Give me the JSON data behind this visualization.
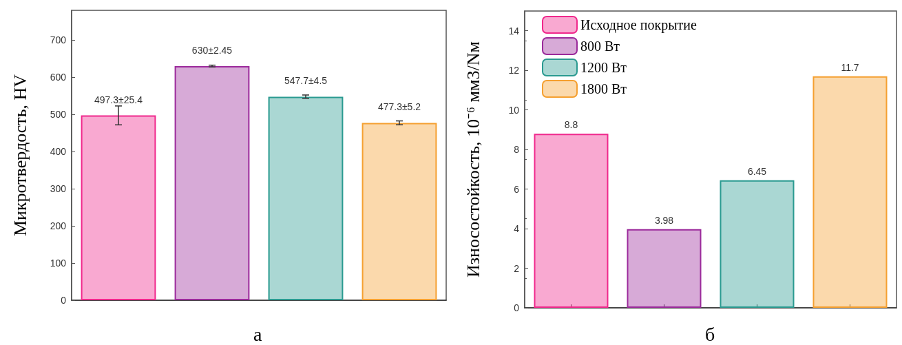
{
  "chart_data": [
    {
      "type": "bar",
      "categories": [
        null,
        null,
        null,
        null
      ],
      "values": [
        497.3,
        630,
        547.7,
        477.3
      ],
      "colors": [
        "#f0288c",
        "#9b2a9b",
        "#2a9a90",
        "#f5a030"
      ],
      "errors": [
        25.4,
        2.45,
        4.5,
        5.2
      ],
      "value_labels": [
        "497.3±25.4",
        "630±2.45",
        "547.7±4.5",
        "477.3±5.2"
      ],
      "ylabel": "Микротвердость, HV",
      "ylim": [
        0,
        780
      ],
      "yticks": [
        0,
        100,
        200,
        300,
        400,
        500,
        600,
        700
      ],
      "grid": false,
      "annotations": [
        "а"
      ]
    },
    {
      "type": "bar",
      "categories": [
        null,
        null,
        null,
        null
      ],
      "series": [
        {
          "name": "Исходное покрытие",
          "color": "#f0288c",
          "values": [
            8.8,
            null,
            null,
            null
          ]
        },
        {
          "name": "800 Вт",
          "color": "#9b2a9b",
          "values": [
            null,
            3.98,
            null,
            null
          ]
        },
        {
          "name": "1200 Вт",
          "color": "#2a9a90",
          "values": [
            null,
            null,
            6.45,
            null
          ]
        },
        {
          "name": "1800 Вт",
          "color": "#f5a030",
          "values": [
            null,
            null,
            null,
            11.7
          ]
        }
      ],
      "data_labels": true,
      "legend": "top left",
      "ylabel": "Износостойкость, 10⁻⁶ мм3/Nм",
      "ylim": [
        0,
        15
      ],
      "yticks": [
        0,
        2,
        4,
        6,
        8,
        10,
        12,
        14
      ],
      "grid": false,
      "annotations": [
        "б"
      ]
    }
  ]
}
